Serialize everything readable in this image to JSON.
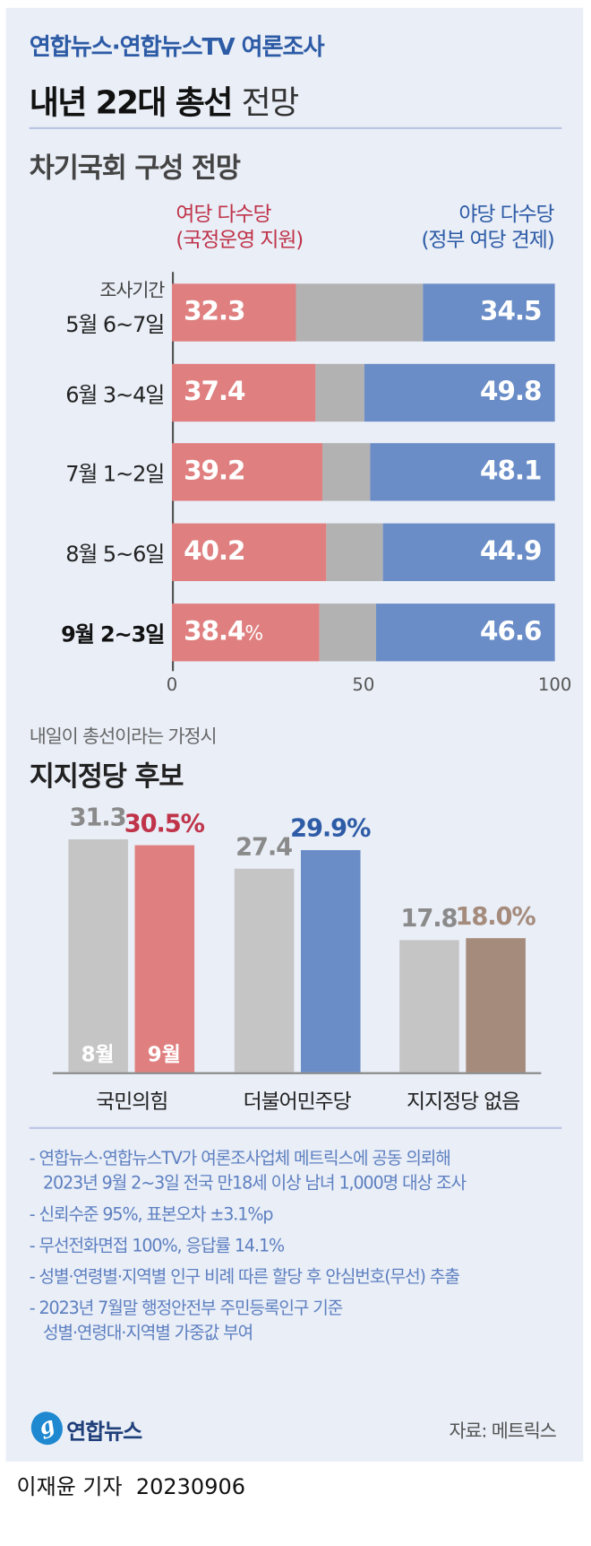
{
  "header": {
    "supertitle": "연합뉴스·연합뉴스TV 여론조사",
    "title_bold": "내년 22대 총선",
    "title_light": "전망"
  },
  "chart_data": [
    {
      "type": "bar",
      "orientation": "horizontal",
      "stacked": true,
      "title": "차기국회 구성 전망",
      "legend": {
        "left": [
          "여당 다수당",
          "(국정운영 지원)"
        ],
        "right": [
          "야당 다수당",
          "(정부 여당 견제)"
        ]
      },
      "row_header": "조사기간",
      "categories": [
        "5월 6~7일",
        "6월 3~4일",
        "7월 1~2일",
        "8월 5~6일",
        "9월 2~3일"
      ],
      "series": [
        {
          "name": "여당 다수당",
          "values": [
            32.3,
            37.4,
            39.2,
            40.2,
            38.4
          ],
          "color": "#e07f7f"
        },
        {
          "values": [
            33.2,
            12.8,
            12.7,
            14.9,
            15.0
          ],
          "color": "#b3b2b2"
        },
        {
          "name": "야당 다수당",
          "values": [
            34.5,
            49.8,
            48.1,
            44.9,
            46.6
          ],
          "color": "#6a8dc8"
        }
      ],
      "labels": {
        "left": [
          "32.3",
          "37.4",
          "39.2",
          "40.2",
          "38.4"
        ],
        "right": [
          "34.5",
          "49.8",
          "48.1",
          "44.9",
          "46.6"
        ],
        "unit": "%"
      },
      "xlim": [
        0,
        100
      ],
      "xticks": [
        "0",
        "50",
        "100"
      ]
    },
    {
      "type": "bar",
      "subtitle": "내일이 총선이라는 가정시",
      "title": "지지정당 후보",
      "categories": [
        "국민의힘",
        "더불어민주당",
        "지지정당 없음"
      ],
      "months": [
        "8월",
        "9월"
      ],
      "series": [
        {
          "name": "8월",
          "values": [
            31.3,
            27.4,
            17.8
          ],
          "labels": [
            "31.3",
            "27.4",
            "17.8"
          ]
        },
        {
          "name": "9월",
          "values": [
            30.5,
            29.9,
            18.0
          ],
          "labels": [
            "30.5%",
            "29.9%",
            "18.0%"
          ]
        }
      ],
      "colors": {
        "prev": "#c6c5c5",
        "prev_label": "#8a8a8a",
        "current": [
          "#e07f7f",
          "#6a8dc8",
          "#a58b7c"
        ],
        "current_label": [
          "#c0344a",
          "#2d5ba6",
          "#a58b7c"
        ]
      },
      "ylim": [
        0,
        31.3
      ]
    }
  ],
  "notes": [
    "- 연합뉴스·연합뉴스TV가 여론조사업체 메트릭스에 공동 의뢰해",
    "2023년 9월 2~3일 전국 만18세 이상 남녀 1,000명 대상 조사",
    "- 신뢰수준 95%, 표본오차 ±3.1%p",
    "- 무선전화면접 100%, 응답률 14.1%",
    "- 성별·연령별·지역별 인구 비례 따른 할당 후 안심번호(무선) 추출",
    "- 2023년 7월말 행정안전부 주민등록인구 기준",
    "성별·연령대·지역별 가중값 부여"
  ],
  "footer": {
    "logo": "연합뉴스",
    "source": "자료: 메트릭스",
    "byline": "이재윤 기자",
    "date": "20230906"
  }
}
